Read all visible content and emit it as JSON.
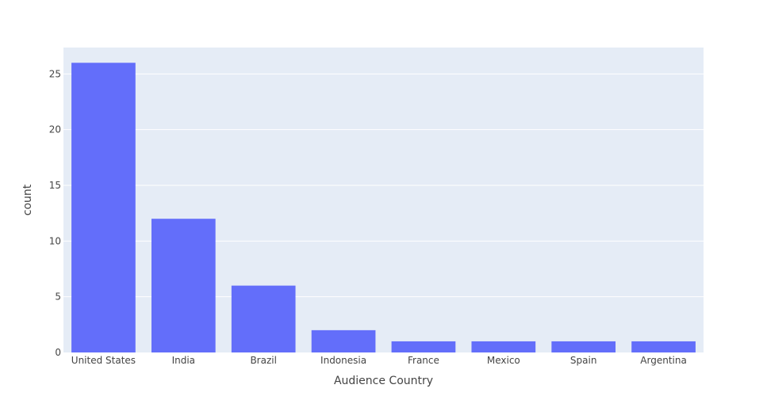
{
  "colors": {
    "plot_background": "#e5ecf6",
    "bar": "#636efa",
    "gridline": "#ffffff",
    "text": "#444444"
  },
  "chart_data": {
    "type": "bar",
    "title": "",
    "xlabel": "Audience Country",
    "ylabel": "count",
    "categories": [
      "United States",
      "India",
      "Brazil",
      "Indonesia",
      "France",
      "Mexico",
      "Spain",
      "Argentina"
    ],
    "values": [
      26,
      12,
      6,
      2,
      1,
      1,
      1,
      1
    ],
    "ylim": [
      0,
      27.37
    ],
    "yticks": [
      0,
      5,
      10,
      15,
      20,
      25
    ],
    "grid": true,
    "legend": "none"
  }
}
